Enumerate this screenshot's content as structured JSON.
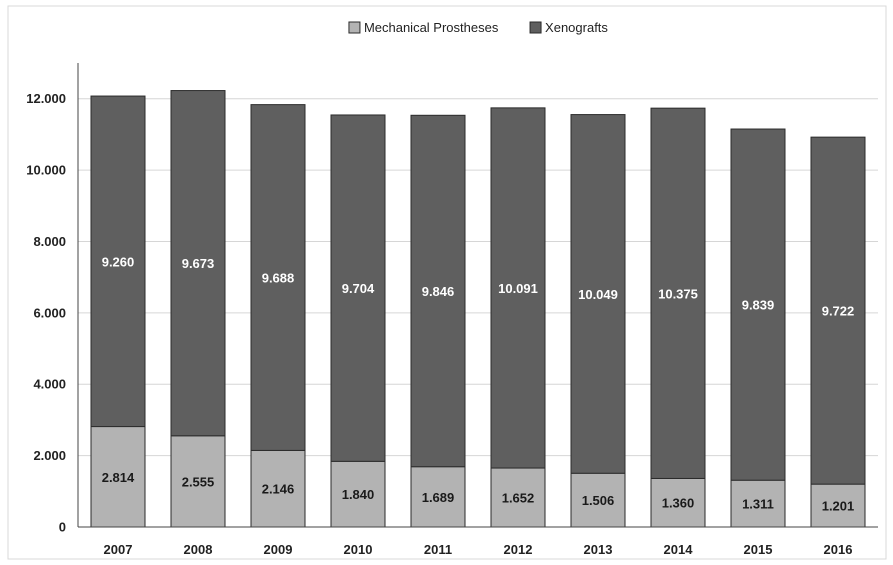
{
  "chart_data": {
    "type": "bar",
    "stacked": true,
    "categories": [
      "2007",
      "2008",
      "2009",
      "2010",
      "2011",
      "2012",
      "2013",
      "2014",
      "2015",
      "2016"
    ],
    "series": [
      {
        "name": "Mechanical Prostheses",
        "color": "#b3b3b3",
        "values": [
          2814,
          2555,
          2146,
          1840,
          1689,
          1652,
          1506,
          1360,
          1311,
          1201
        ],
        "labels": [
          "2.814",
          "2.555",
          "2.146",
          "1.840",
          "1.689",
          "1.652",
          "1.506",
          "1.360",
          "1.311",
          "1.201"
        ]
      },
      {
        "name": "Xenografts",
        "color": "#5f5f5f",
        "values": [
          9260,
          9673,
          9688,
          9704,
          9846,
          10091,
          10049,
          10375,
          9839,
          9722
        ],
        "labels": [
          "9.260",
          "9.673",
          "9.688",
          "9.704",
          "9.846",
          "10.091",
          "10.049",
          "10.375",
          "9.839",
          "9.722"
        ]
      }
    ],
    "ylim": [
      0,
      13000
    ],
    "yticks": [
      0,
      2000,
      4000,
      6000,
      8000,
      10000,
      12000
    ],
    "ytick_labels": [
      "0",
      "2.000",
      "4.000",
      "6.000",
      "8.000",
      "10.000",
      "12.000"
    ],
    "grid": true,
    "legend": "top-center",
    "title": "",
    "xlabel": "",
    "ylabel": ""
  }
}
